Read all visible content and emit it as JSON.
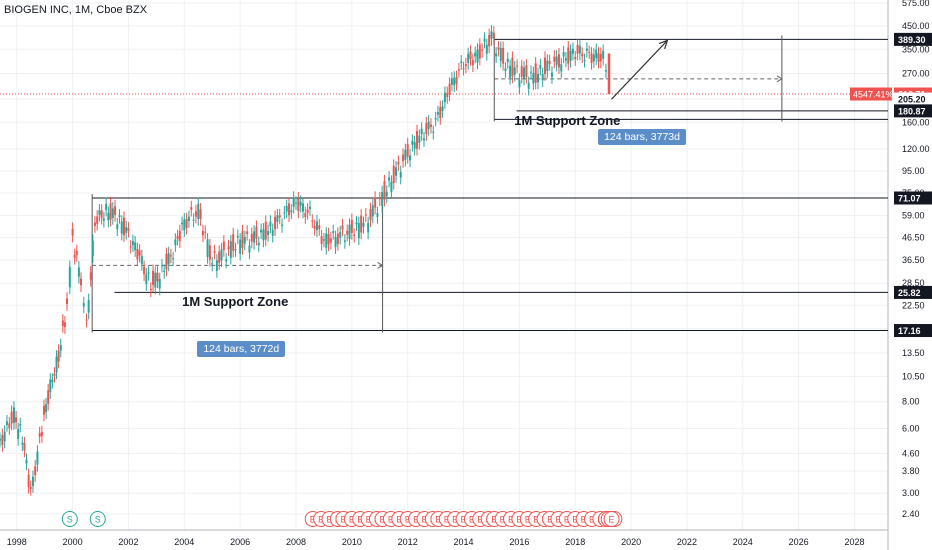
{
  "title": "BIOGEN INC, 1M, Cboe BZX",
  "chart_data": {
    "type": "candlestick",
    "scale": "log",
    "grid": true,
    "y_ticks": [
      "575.00",
      "450.00",
      "350.00",
      "270.00",
      "205.20",
      "160.00",
      "120.00",
      "95.00",
      "75.00",
      "59.00",
      "46.50",
      "36.50",
      "28.50",
      "22.50",
      "17.50",
      "13.50",
      "10.50",
      "8.00",
      "6.00",
      "4.60",
      "3.80",
      "3.00",
      "2.40"
    ],
    "y_tick_values": [
      575,
      450,
      350,
      270,
      205.2,
      160,
      120,
      95,
      75,
      59,
      46.5,
      36.5,
      28.5,
      22.5,
      17.5,
      13.5,
      10.5,
      8,
      6,
      4.6,
      3.8,
      3,
      2.4
    ],
    "x_ticks": [
      "1998",
      "2000",
      "2002",
      "2004",
      "2006",
      "2008",
      "2010",
      "2012",
      "2014",
      "2016",
      "2018",
      "2020",
      "2022",
      "2024",
      "2026",
      "2028"
    ],
    "x_tick_values": [
      1998,
      2000,
      2002,
      2004,
      2006,
      2008,
      2010,
      2012,
      2014,
      2016,
      2018,
      2020,
      2022,
      2024,
      2026,
      2028
    ],
    "price_labels": [
      {
        "text": "389.30",
        "value": 389.3,
        "style": "dark"
      },
      {
        "text": "216.71",
        "value": 216.71,
        "style": "red"
      },
      {
        "text": "205.20",
        "value": 205.2,
        "style": "light"
      },
      {
        "text": "180.87",
        "value": 180.87,
        "style": "dark"
      },
      {
        "text": "71.07",
        "value": 71.07,
        "style": "dark"
      },
      {
        "text": "25.82",
        "value": 25.82,
        "style": "dark"
      },
      {
        "text": "17.16",
        "value": 17.16,
        "style": "dark"
      }
    ],
    "current_price": 216.71,
    "change_label": "4547.41%",
    "zones": [
      {
        "label": "1M Support Zone",
        "start": 2000.7,
        "end": 2011.1,
        "top": 71.07,
        "support": 25.82,
        "bottom": 17.16,
        "mid": 34.5,
        "measure": "124 bars, 3772d"
      },
      {
        "label": "1M Support Zone",
        "start": 2015.1,
        "end": 2025.4,
        "top": 389.3,
        "support": 180.87,
        "bottom": 165,
        "mid": 255,
        "measure": "124 bars, 3773d"
      }
    ],
    "arrow": {
      "from": [
        2019.3,
        205
      ],
      "to": [
        2021.3,
        385
      ]
    },
    "events": [
      "S",
      "S",
      "E",
      "E",
      "E",
      "E",
      "E",
      "E",
      "E",
      "E",
      "E",
      "E",
      "E",
      "E",
      "E",
      "E",
      "E",
      "E",
      "E",
      "E",
      "E",
      "E",
      "E",
      "E",
      "E",
      "E",
      "E",
      "E",
      "E",
      "E",
      "E",
      "E",
      "E",
      "E",
      "E",
      "E",
      "E",
      "E",
      "E",
      "E",
      "E",
      "E",
      "E",
      "E"
    ],
    "event_positions": [
      1999.9,
      2000.9,
      2008.6,
      2008.9,
      2009.2,
      2009.5,
      2009.7,
      2010.0,
      2010.3,
      2010.6,
      2010.9,
      2011.1,
      2011.4,
      2011.7,
      2012.0,
      2012.3,
      2012.6,
      2012.9,
      2013.1,
      2013.4,
      2013.7,
      2014.0,
      2014.3,
      2014.6,
      2014.9,
      2015.1,
      2015.4,
      2015.7,
      2016.0,
      2016.3,
      2016.6,
      2016.9,
      2017.1,
      2017.4,
      2017.7,
      2018.0,
      2018.3,
      2018.6,
      2018.9,
      2019.1,
      2019.4,
      2019.1,
      2019.2,
      2019.3
    ],
    "series": [
      {
        "t": 1997.4,
        "v": 5.2
      },
      {
        "t": 1997.9,
        "v": 7.0
      },
      {
        "t": 1998.2,
        "v": 5.5
      },
      {
        "t": 1998.5,
        "v": 3.0
      },
      {
        "t": 1998.9,
        "v": 6.0
      },
      {
        "t": 1999.2,
        "v": 9.5
      },
      {
        "t": 1999.5,
        "v": 13
      },
      {
        "t": 1999.8,
        "v": 22
      },
      {
        "t": 2000.0,
        "v": 45
      },
      {
        "t": 2000.3,
        "v": 30
      },
      {
        "t": 2000.5,
        "v": 18
      },
      {
        "t": 2000.8,
        "v": 55
      },
      {
        "t": 2001.2,
        "v": 62
      },
      {
        "t": 2001.6,
        "v": 58
      },
      {
        "t": 2002.0,
        "v": 48
      },
      {
        "t": 2002.4,
        "v": 38
      },
      {
        "t": 2002.8,
        "v": 28
      },
      {
        "t": 2003.2,
        "v": 32
      },
      {
        "t": 2003.6,
        "v": 40
      },
      {
        "t": 2004.0,
        "v": 55
      },
      {
        "t": 2004.5,
        "v": 62
      },
      {
        "t": 2005.0,
        "v": 36
      },
      {
        "t": 2005.5,
        "v": 40
      },
      {
        "t": 2006.0,
        "v": 45
      },
      {
        "t": 2006.5,
        "v": 46
      },
      {
        "t": 2007.0,
        "v": 50
      },
      {
        "t": 2007.5,
        "v": 58
      },
      {
        "t": 2008.0,
        "v": 68
      },
      {
        "t": 2008.5,
        "v": 60
      },
      {
        "t": 2009.0,
        "v": 45
      },
      {
        "t": 2009.5,
        "v": 47
      },
      {
        "t": 2010.0,
        "v": 50
      },
      {
        "t": 2010.5,
        "v": 55
      },
      {
        "t": 2011.0,
        "v": 68
      },
      {
        "t": 2011.5,
        "v": 90
      },
      {
        "t": 2012.0,
        "v": 115
      },
      {
        "t": 2012.5,
        "v": 140
      },
      {
        "t": 2013.0,
        "v": 160
      },
      {
        "t": 2013.5,
        "v": 230
      },
      {
        "t": 2014.0,
        "v": 300
      },
      {
        "t": 2014.5,
        "v": 330
      },
      {
        "t": 2015.0,
        "v": 400
      },
      {
        "t": 2015.5,
        "v": 300
      },
      {
        "t": 2016.0,
        "v": 270
      },
      {
        "t": 2016.5,
        "v": 260
      },
      {
        "t": 2017.0,
        "v": 290
      },
      {
        "t": 2017.5,
        "v": 310
      },
      {
        "t": 2018.0,
        "v": 340
      },
      {
        "t": 2018.5,
        "v": 330
      },
      {
        "t": 2019.0,
        "v": 320
      },
      {
        "t": 2019.2,
        "v": 216.71
      }
    ]
  }
}
